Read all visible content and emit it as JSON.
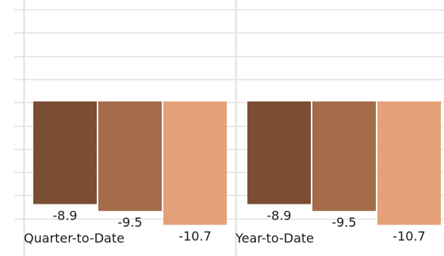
{
  "chart_data": {
    "type": "bar",
    "categories": [
      "Quarter-to-Date",
      "Year-to-Date"
    ],
    "series": [
      {
        "values": [
          -8.9,
          -8.9
        ],
        "color": "#7b4e34"
      },
      {
        "values": [
          -9.5,
          -9.5
        ],
        "color": "#a56c4a"
      },
      {
        "values": [
          -10.7,
          -10.7
        ],
        "color": "#e4a078"
      }
    ],
    "ylim": [
      -12,
      0
    ],
    "grid": true,
    "gridline_color": "#e2e2e2"
  }
}
